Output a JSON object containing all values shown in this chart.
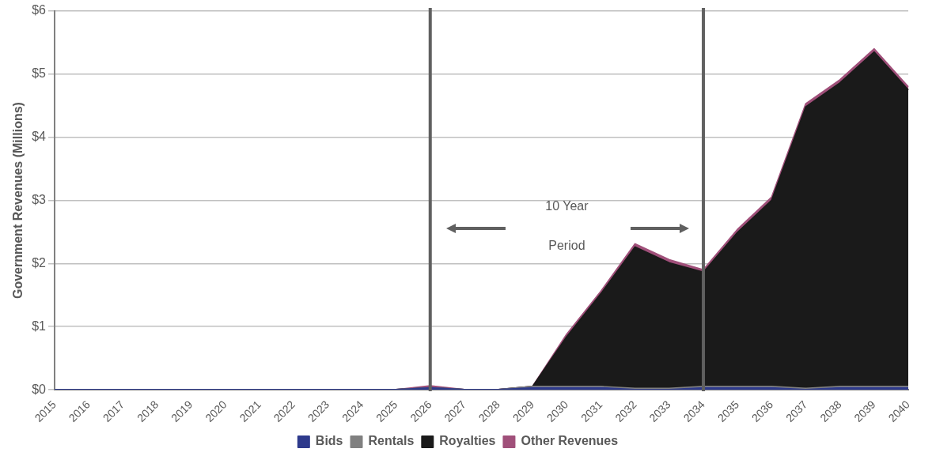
{
  "chart_data": {
    "type": "area",
    "stacked": true,
    "ylabel": "Government Revenues (Millions)",
    "categories": [
      "2015",
      "2016",
      "2017",
      "2018",
      "2019",
      "2020",
      "2021",
      "2022",
      "2023",
      "2024",
      "2025",
      "2026",
      "2027",
      "2028",
      "2029",
      "2030",
      "2031",
      "2032",
      "2033",
      "2034",
      "2035",
      "2036",
      "2037",
      "2038",
      "2039",
      "2040"
    ],
    "series": [
      {
        "name": "Bids",
        "color": "#2e3a8c",
        "values": [
          0,
          0,
          0,
          0,
          0,
          0,
          0,
          0,
          0,
          0,
          0,
          0.03,
          0,
          0,
          0.03,
          0.03,
          0.03,
          0,
          0,
          0.03,
          0.03,
          0.03,
          0,
          0.03,
          0.03,
          0.03
        ]
      },
      {
        "name": "Rentals",
        "color": "#808080",
        "values": [
          0,
          0,
          0,
          0,
          0,
          0,
          0,
          0,
          0,
          0,
          0,
          0,
          0,
          0,
          0.02,
          0.02,
          0.02,
          0.02,
          0.02,
          0.02,
          0.02,
          0.02,
          0.02,
          0.02,
          0.02,
          0.02
        ]
      },
      {
        "name": "Royalties",
        "color": "#1a1a1a",
        "values": [
          0,
          0,
          0,
          0,
          0,
          0,
          0,
          0,
          0,
          0,
          0,
          0,
          0,
          0,
          0,
          0.79,
          1.47,
          2.24,
          1.99,
          1.81,
          2.44,
          2.95,
          4.46,
          4.81,
          5.3,
          4.7
        ]
      },
      {
        "name": "Other Revenues",
        "color": "#a0507a",
        "values": [
          0,
          0,
          0,
          0,
          0,
          0,
          0,
          0,
          0,
          0,
          0,
          0.03,
          0,
          0,
          0,
          0.04,
          0.04,
          0.05,
          0.05,
          0.04,
          0.05,
          0.05,
          0.05,
          0.05,
          0.05,
          0.05
        ]
      }
    ],
    "ylim": [
      0,
      6
    ],
    "yticks": [
      {
        "value": 0,
        "label": "$0"
      },
      {
        "value": 1,
        "label": "$1"
      },
      {
        "value": 2,
        "label": "$2"
      },
      {
        "value": 3,
        "label": "$3"
      },
      {
        "value": 4,
        "label": "$4"
      },
      {
        "value": 5,
        "label": "$5"
      },
      {
        "value": 6,
        "label": "$6"
      }
    ],
    "grid": "y",
    "legend": "bottom",
    "ref_lines": [
      {
        "axis": "x",
        "value": "2026",
        "color": "#606060"
      },
      {
        "axis": "x",
        "value": "2034",
        "color": "#606060"
      }
    ],
    "annotations": [
      "10 Year Period"
    ]
  }
}
